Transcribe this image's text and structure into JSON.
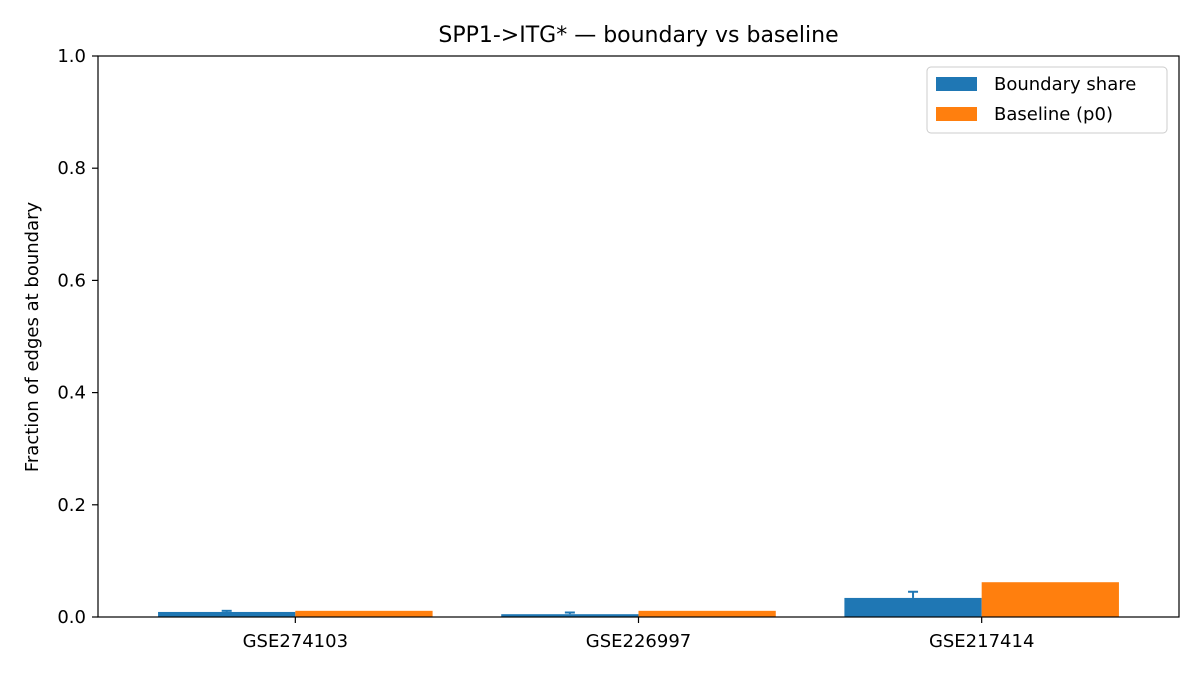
{
  "chart_data": {
    "type": "bar",
    "title": "SPP1->ITG* — boundary vs baseline",
    "xlabel": "",
    "ylabel": "Fraction of edges at boundary",
    "categories": [
      "GSE274103",
      "GSE226997",
      "GSE217414"
    ],
    "ylim": [
      0,
      1.0
    ],
    "yticks": [
      "0.0",
      "0.2",
      "0.4",
      "0.6",
      "0.8",
      "1.0"
    ],
    "grid": false,
    "legend_position": "top-right",
    "series": [
      {
        "name": "Boundary share",
        "color": "#1f77b4",
        "values": [
          0.009,
          0.005,
          0.034
        ],
        "error_upper": [
          0.011,
          0.008,
          0.045
        ]
      },
      {
        "name": "Baseline (p0)",
        "color": "#ff7f0e",
        "values": [
          0.011,
          0.011,
          0.062
        ]
      }
    ]
  }
}
